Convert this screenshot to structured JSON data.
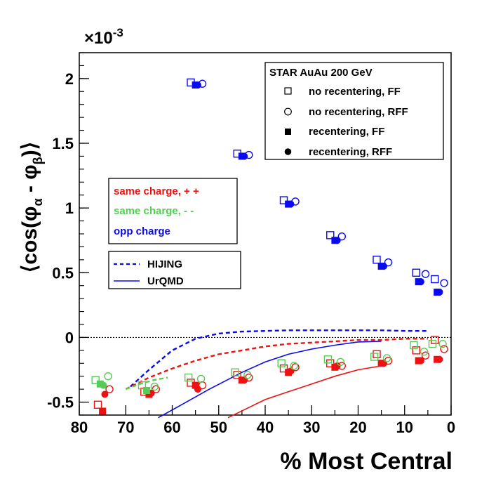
{
  "chart_data": {
    "type": "scatter",
    "title": "",
    "xlabel": "% Most Central",
    "ylabel": "⟨cos(φα - φβ)⟩",
    "ylabel_parts": {
      "open": "⟨cos(φ",
      "alpha": "α",
      "mid": " - φ",
      "beta": "β",
      "close": ")⟩"
    },
    "y_multiplier": "×10",
    "y_multiplier_exp": "-3",
    "xlim": [
      80,
      0
    ],
    "ylim": [
      -0.6,
      2.2
    ],
    "x_ticks": [
      80,
      70,
      60,
      50,
      40,
      30,
      20,
      10,
      0
    ],
    "y_ticks": [
      -0.5,
      0,
      0.5,
      1,
      1.5,
      2
    ],
    "y_tick_labels": [
      "-0.5",
      "0",
      "0.5",
      "1",
      "1.5",
      "2"
    ],
    "zero_line": 0,
    "legend_main": {
      "header": "STAR  AuAu 200 GeV",
      "entries": [
        {
          "label": "no recentering, FF",
          "marker": "open-square"
        },
        {
          "label": "no recentering, RFF",
          "marker": "open-circle"
        },
        {
          "label": "recentering, FF",
          "marker": "filled-square"
        },
        {
          "label": "recentering, RFF",
          "marker": "filled-circle"
        }
      ]
    },
    "legend_charge": [
      {
        "label": "same charge, + +",
        "color": "#ee1111"
      },
      {
        "label": "same charge, - -",
        "color": "#55cc55"
      },
      {
        "label": "opp charge",
        "color": "#0a0aee"
      }
    ],
    "legend_models": [
      {
        "label": "HIJING",
        "style": "dashed"
      },
      {
        "label": "UrQMD",
        "style": "solid"
      }
    ],
    "series": [
      {
        "name": "opp no recentering FF",
        "color": "#0a0aee",
        "marker": "open-square",
        "x": [
          56,
          46,
          36,
          26,
          16,
          7.5,
          3.5
        ],
        "y": [
          1.97,
          1.42,
          1.06,
          0.79,
          0.6,
          0.5,
          0.45
        ]
      },
      {
        "name": "opp no recentering RFF",
        "color": "#0a0aee",
        "marker": "open-circle",
        "x": [
          53.5,
          43.5,
          33.5,
          23.5,
          13.5,
          5.5,
          1.5
        ],
        "y": [
          1.96,
          1.41,
          1.05,
          0.78,
          0.58,
          0.49,
          0.42
        ]
      },
      {
        "name": "opp recentering FF",
        "color": "#0a0aee",
        "marker": "filled-square",
        "x": [
          55,
          45,
          35,
          25,
          15,
          7,
          3
        ],
        "y": [
          1.95,
          1.4,
          1.03,
          0.75,
          0.55,
          0.43,
          0.35
        ]
      },
      {
        "name": "opp recentering RFF",
        "color": "#0a0aee",
        "marker": "filled-circle",
        "x": [
          54.5,
          44.5,
          34.5,
          24.5,
          14.5,
          6.5,
          2.5
        ],
        "y": [
          1.95,
          1.4,
          1.03,
          0.75,
          0.55,
          0.43,
          0.35
        ]
      },
      {
        "name": "same ++ no recentering FF",
        "color": "#ee1111",
        "marker": "open-square",
        "x": [
          76,
          66,
          56,
          46,
          36,
          26,
          16,
          7.5,
          3.5
        ],
        "y": [
          -0.52,
          -0.42,
          -0.35,
          -0.29,
          -0.24,
          -0.2,
          -0.13,
          -0.1,
          -0.02
        ]
      },
      {
        "name": "same ++ no recentering RFF",
        "color": "#ee1111",
        "marker": "open-circle",
        "x": [
          73.5,
          63.5,
          53.5,
          43.5,
          33.5,
          23.5,
          13.5,
          5.5,
          1.5
        ],
        "y": [
          -0.4,
          -0.4,
          -0.37,
          -0.31,
          -0.23,
          -0.22,
          -0.18,
          -0.14,
          -0.09
        ]
      },
      {
        "name": "same ++ recentering FF",
        "color": "#ee1111",
        "marker": "filled-square",
        "x": [
          75,
          65,
          55,
          45,
          35,
          25,
          15,
          7,
          3
        ],
        "y": [
          -0.57,
          -0.44,
          -0.37,
          -0.33,
          -0.27,
          -0.23,
          -0.2,
          -0.18,
          -0.17
        ]
      },
      {
        "name": "same ++ recentering RFF",
        "color": "#ee1111",
        "marker": "filled-circle",
        "x": [
          74.5,
          64.5,
          54.5,
          44.5,
          34.5,
          24.5,
          14.5,
          6.5,
          2.5
        ],
        "y": [
          -0.44,
          -0.43,
          -0.4,
          -0.33,
          -0.26,
          -0.22,
          -0.2,
          -0.18,
          -0.17
        ]
      },
      {
        "name": "same -- no recentering FF",
        "color": "#55cc55",
        "marker": "open-square",
        "x": [
          76.5,
          66.5,
          56.5,
          46.5,
          36.5,
          26.5,
          16.5,
          8,
          4
        ],
        "y": [
          -0.33,
          -0.37,
          -0.31,
          -0.27,
          -0.2,
          -0.17,
          -0.15,
          -0.06,
          -0.05
        ]
      },
      {
        "name": "same -- no recentering RFF",
        "color": "#55cc55",
        "marker": "open-circle",
        "x": [
          73.8,
          63.8,
          53.8,
          43.8,
          33.8,
          23.8,
          13.8,
          5.8,
          1.8
        ],
        "y": [
          -0.3,
          -0.38,
          -0.32,
          -0.29,
          -0.22,
          -0.19,
          -0.16,
          -0.11,
          -0.05
        ]
      },
      {
        "name": "same -- recentering FF",
        "color": "#55cc55",
        "marker": "filled-square",
        "x": [
          75.5,
          65.5
        ],
        "y": [
          -0.36,
          -0.41
        ]
      },
      {
        "name": "same -- recentering RFF",
        "color": "#55cc55",
        "marker": "filled-circle",
        "x": [
          74.8
        ],
        "y": [
          -0.37
        ]
      }
    ],
    "curves": [
      {
        "name": "HIJING opp",
        "color": "#0a0aee",
        "style": "dashed",
        "x": [
          69,
          65,
          60,
          55,
          50,
          45,
          40,
          35,
          30,
          25,
          20,
          15,
          10,
          5
        ],
        "y": [
          -0.38,
          -0.25,
          -0.1,
          -0.01,
          0.03,
          0.045,
          0.05,
          0.055,
          0.055,
          0.055,
          0.055,
          0.055,
          0.05,
          0.05
        ]
      },
      {
        "name": "HIJING same ++",
        "color": "#ee1111",
        "style": "dashed",
        "x": [
          70,
          65,
          60,
          55,
          50,
          45,
          40,
          35,
          30,
          25,
          20,
          15,
          10,
          5
        ],
        "y": [
          -0.4,
          -0.31,
          -0.24,
          -0.18,
          -0.13,
          -0.1,
          -0.07,
          -0.05,
          -0.04,
          -0.03,
          -0.02,
          -0.02,
          -0.01,
          -0.01
        ]
      },
      {
        "name": "HIJING same --",
        "color": "#55cc55",
        "style": "dashed",
        "x": [
          70,
          67,
          64,
          61
        ],
        "y": [
          -0.4,
          -0.36,
          -0.33,
          -0.31
        ]
      },
      {
        "name": "UrQMD opp",
        "color": "#0a0aee",
        "style": "solid",
        "x": [
          63,
          58,
          52,
          45,
          40,
          35,
          30,
          25,
          20,
          15
        ],
        "y": [
          -0.62,
          -0.52,
          -0.4,
          -0.27,
          -0.19,
          -0.13,
          -0.09,
          -0.06,
          -0.035,
          -0.03
        ]
      },
      {
        "name": "UrQMD same ++",
        "color": "#ee1111",
        "style": "solid",
        "x": [
          48,
          44,
          40,
          35,
          30,
          25,
          20,
          15
        ],
        "y": [
          -0.62,
          -0.55,
          -0.48,
          -0.42,
          -0.36,
          -0.3,
          -0.25,
          -0.22
        ]
      }
    ]
  }
}
